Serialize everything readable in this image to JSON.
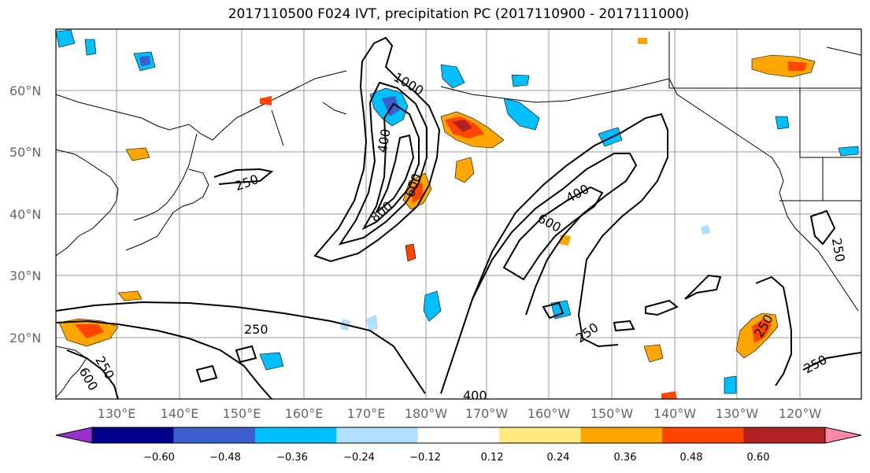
{
  "title": "2017110500 F024 IVT, precipitation PC (2017110900 - 2017111000)",
  "lat_labels": [
    "60°N",
    "50°N",
    "40°N",
    "30°N",
    "20°N"
  ],
  "lon_labels": [
    "130°E",
    "140°E",
    "150°E",
    "160°E",
    "170°E",
    "180°W",
    "170°W",
    "160°W",
    "150°W",
    "140°W",
    "130°W",
    "120°W"
  ],
  "contour_labels": [
    "250",
    "400",
    "600",
    "800",
    "1000",
    "250",
    "400",
    "600",
    "250",
    "250",
    "250",
    "250",
    "400",
    "600",
    "250",
    "250"
  ],
  "colorbar": {
    "ticks": [
      "−0.60",
      "−0.48",
      "−0.36",
      "−0.24",
      "−0.12",
      "0.12",
      "0.24",
      "0.36",
      "0.48",
      "0.60"
    ],
    "colors": [
      "#9b30d0",
      "#00008b",
      "#3a5fcd",
      "#00bfff",
      "#b0e0ff",
      "#ffffff",
      "#ffe97f",
      "#ffa500",
      "#ff4500",
      "#b22222",
      "#ff88aa"
    ]
  }
}
